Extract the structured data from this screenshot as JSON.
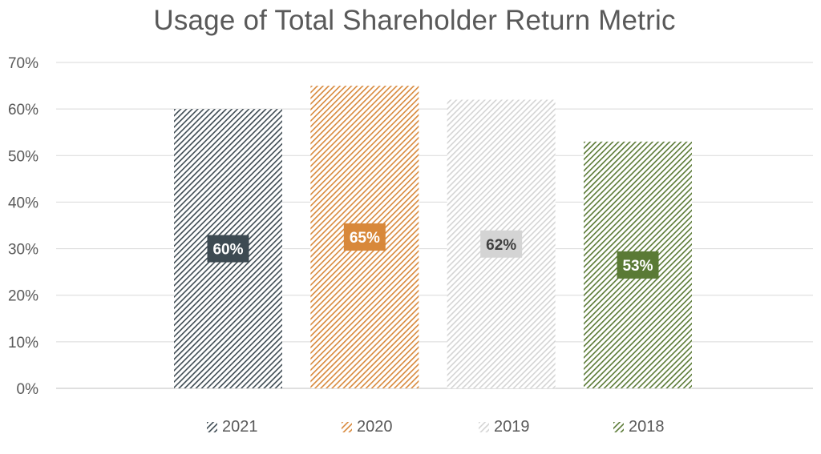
{
  "chart_data": {
    "type": "bar",
    "title": "Usage of Total Shareholder Return Metric",
    "xlabel": "",
    "ylabel": "",
    "ylim": [
      0,
      0.7
    ],
    "yticks": [
      "0%",
      "10%",
      "20%",
      "30%",
      "40%",
      "50%",
      "60%",
      "70%"
    ],
    "grid": true,
    "legend_position": "bottom",
    "series": [
      {
        "name": "2021",
        "values": [
          0.6
        ],
        "label": "60%",
        "color": "#3d4a52",
        "label_bg": "#3d4a52",
        "label_color": "#ffffff"
      },
      {
        "name": "2020",
        "values": [
          0.65
        ],
        "label": "65%",
        "color": "#d8883a",
        "label_bg": "#d8883a",
        "label_color": "#ffffff"
      },
      {
        "name": "2019",
        "values": [
          0.62
        ],
        "label": "62%",
        "color": "#d4d4d4",
        "label_bg": "#d4d4d4",
        "label_color": "#404040"
      },
      {
        "name": "2018",
        "values": [
          0.53
        ],
        "label": "53%",
        "color": "#5a7a35",
        "label_bg": "#5a7a35",
        "label_color": "#ffffff"
      }
    ]
  }
}
